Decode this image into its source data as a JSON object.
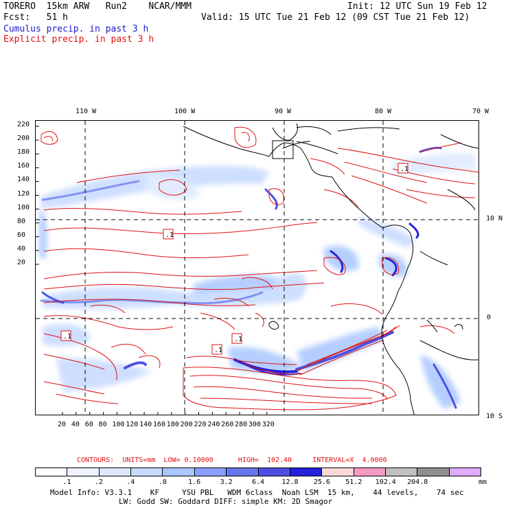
{
  "header": {
    "model": "TORERO  15km ARW   Run2    NCAR/MMM",
    "init": "Init: 12 UTC Sun 19 Feb 12",
    "fcst": "Fcst:   51 h",
    "valid": "Valid: 15 UTC Tue 21 Feb 12 (09 CST Tue 21 Feb 12)",
    "cumulus_label": "Cumulus precip. in past 3 h",
    "explicit_label": "Explicit precip. in past 3 h"
  },
  "colors": {
    "cumulus": "#1a1acc",
    "explicit": "#e01010",
    "coast": "#000000",
    "colorbar": [
      "#ffffff",
      "#eef3ff",
      "#dde8ff",
      "#c6d9ff",
      "#a9c6ff",
      "#8c9eff",
      "#6674ee",
      "#4e4fe0",
      "#2222dd",
      "#fbd8d8",
      "#f39ac0",
      "#c0c0c0",
      "#8f8f8f",
      "#e0aaff"
    ]
  },
  "map": {
    "top_lon_labels": [
      "110 W",
      "100 W",
      "90 W",
      "80 W",
      "70 W"
    ],
    "right_lat_labels": [
      "10 N",
      "0",
      "10 S"
    ],
    "left_ticks": [
      "220",
      "200",
      "180",
      "160",
      "140",
      "120",
      "100",
      "80",
      "60",
      "40",
      "20"
    ],
    "bottom_ticks": [
      "20",
      "40",
      "60",
      "80",
      "100",
      "120",
      "140",
      "160",
      "180",
      "200",
      "220",
      "240",
      "260",
      "280",
      "300",
      "320"
    ],
    "box_labels": [
      ".1",
      ".1",
      ".1",
      ".1",
      ".1"
    ]
  },
  "legend": {
    "contours": "CONTOURS:  UNITS=mm  LOW= 0.10000      HIGH=  102.40     INTERVAL=X  4.0000",
    "colorbar_labels": [
      ".1",
      ".2",
      ".4",
      ".8",
      "1.6",
      "3.2",
      "6.4",
      "12.8",
      "25.6",
      "51.2",
      "102.4",
      "204.8"
    ],
    "units": "mm"
  },
  "model_info": {
    "line1": "Model Info: V3.3.1    KF     YSU PBL   WDM 6class  Noah LSM  15 km,    44 levels,    74 sec",
    "line2": "LW: Godd SW: Goddard DIFF: simple KM: 2D Smagor"
  }
}
